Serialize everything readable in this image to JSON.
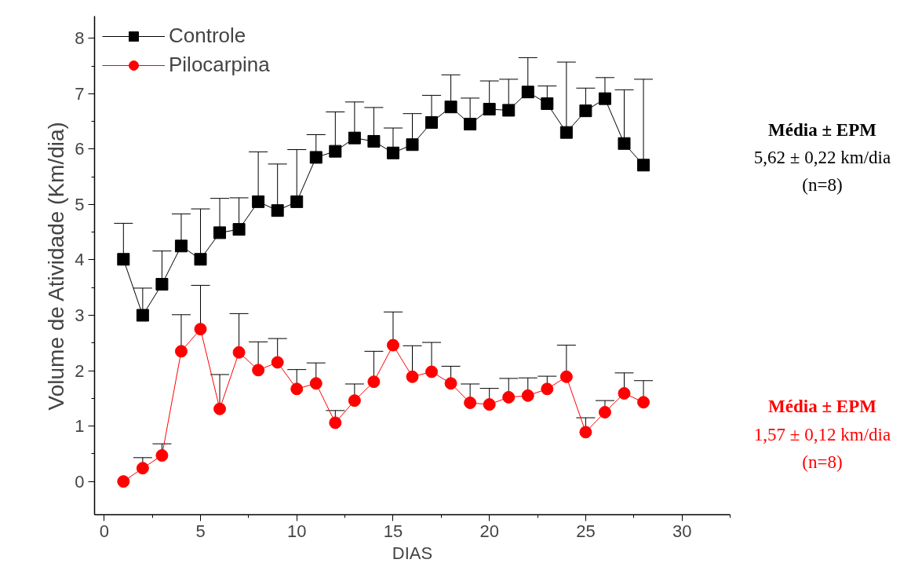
{
  "chart_data": {
    "type": "line",
    "xlabel": "DIAS",
    "ylabel": "Volume de Atividade (Km/dia)",
    "x": [
      1,
      2,
      3,
      4,
      5,
      6,
      7,
      8,
      9,
      10,
      11,
      12,
      13,
      14,
      15,
      16,
      17,
      18,
      19,
      20,
      21,
      22,
      23,
      24,
      25,
      26,
      27,
      28
    ],
    "series": [
      {
        "name": "Controle",
        "color": "#000000",
        "marker": "square",
        "values": [
          4.01,
          3.0,
          3.56,
          4.25,
          4.01,
          4.49,
          4.55,
          5.05,
          4.89,
          5.05,
          5.85,
          5.96,
          6.2,
          6.14,
          5.93,
          6.08,
          6.48,
          6.76,
          6.45,
          6.72,
          6.7,
          7.03,
          6.82,
          6.3,
          6.69,
          6.91,
          6.1,
          5.71
        ],
        "errors": [
          [
            4.01,
            4.66
          ],
          [
            3.0,
            3.49
          ],
          [
            3.56,
            4.16
          ],
          [
            4.25,
            4.83
          ],
          [
            4.01,
            4.92
          ],
          [
            4.49,
            5.11
          ],
          [
            4.55,
            5.12
          ],
          [
            5.05,
            5.95
          ],
          [
            4.89,
            5.73
          ],
          [
            5.05,
            5.99
          ],
          [
            5.85,
            6.26
          ],
          [
            5.96,
            6.67
          ],
          [
            6.2,
            6.85
          ],
          [
            6.14,
            6.75
          ],
          [
            5.93,
            6.38
          ],
          [
            6.08,
            6.64
          ],
          [
            6.48,
            6.97
          ],
          [
            6.76,
            7.34
          ],
          [
            6.45,
            6.92
          ],
          [
            6.72,
            7.23
          ],
          [
            6.7,
            7.26
          ],
          [
            7.03,
            7.65
          ],
          [
            6.82,
            7.14
          ],
          [
            6.3,
            7.57
          ],
          [
            6.69,
            7.1
          ],
          [
            6.91,
            7.29
          ],
          [
            6.1,
            7.07
          ],
          [
            5.71,
            7.26
          ]
        ]
      },
      {
        "name": "Pilocarpina",
        "color": "#ff0000",
        "marker": "circle",
        "values": [
          0.0,
          0.24,
          0.47,
          2.35,
          2.75,
          1.31,
          2.33,
          2.01,
          2.15,
          1.67,
          1.77,
          1.06,
          1.46,
          1.8,
          2.46,
          1.89,
          1.98,
          1.77,
          1.42,
          1.39,
          1.52,
          1.55,
          1.67,
          1.89,
          0.89,
          1.25,
          1.59,
          1.43
        ],
        "errors": [
          null,
          [
            0.24,
            0.43
          ],
          [
            0.47,
            0.68
          ],
          [
            2.35,
            3.01
          ],
          [
            2.75,
            3.54
          ],
          [
            1.31,
            1.93
          ],
          [
            2.33,
            3.03
          ],
          [
            2.01,
            2.52
          ],
          [
            2.15,
            2.58
          ],
          [
            1.67,
            2.02
          ],
          [
            1.77,
            2.14
          ],
          [
            1.06,
            1.28
          ],
          [
            1.46,
            1.76
          ],
          [
            1.8,
            2.35
          ],
          [
            2.46,
            3.06
          ],
          [
            1.89,
            2.45
          ],
          [
            1.98,
            2.51
          ],
          [
            1.77,
            2.08
          ],
          [
            1.42,
            1.76
          ],
          [
            1.39,
            1.68
          ],
          [
            1.52,
            1.86
          ],
          [
            1.55,
            1.87
          ],
          [
            1.67,
            1.9
          ],
          [
            1.89,
            2.46
          ],
          [
            0.89,
            1.15
          ],
          [
            1.25,
            1.46
          ],
          [
            1.59,
            1.96
          ],
          [
            1.43,
            1.82
          ]
        ]
      }
    ],
    "annotations": [
      "Média ± EPM",
      "5,62 ± 0,22 km/dia",
      "(n=8)",
      "Média ± EPM",
      "1,57 ± 0,12 km/dia",
      "(n=8)"
    ],
    "xlim": [
      -0.5,
      32.5
    ],
    "xticks": [
      0,
      5,
      10,
      15,
      20,
      25,
      30
    ],
    "ylim": [
      -0.6,
      8.4
    ],
    "yticks": [
      0,
      1,
      2,
      3,
      4,
      5,
      6,
      7,
      8
    ],
    "grid": false,
    "legend": "top left",
    "line_style": "solid"
  }
}
